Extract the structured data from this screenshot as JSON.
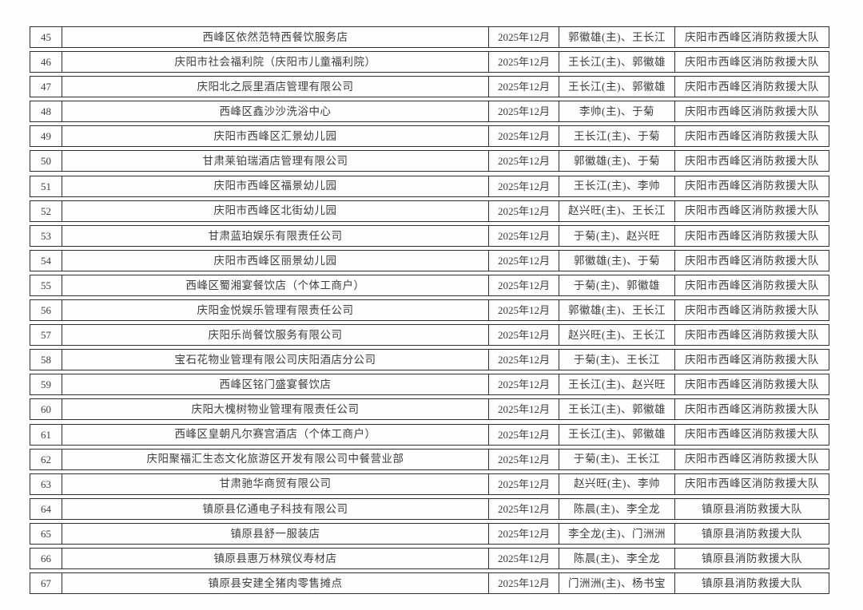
{
  "colors": {
    "border": "#2f2f2f",
    "text": "#3d3d3d",
    "page_background": "#fefefe"
  },
  "table": {
    "rows": [
      {
        "seq": "45",
        "name": "西峰区依然范特西餐饮服务店",
        "date": "2025年12月",
        "inspectors": "郭徽雄(主)、王长江",
        "brigade": "庆阳市西峰区消防救援大队"
      },
      {
        "seq": "46",
        "name": "庆阳市社会福利院（庆阳市儿童福利院）",
        "date": "2025年12月",
        "inspectors": "王长江(主)、郭徽雄",
        "brigade": "庆阳市西峰区消防救援大队"
      },
      {
        "seq": "47",
        "name": "庆阳北之辰里酒店管理有限公司",
        "date": "2025年12月",
        "inspectors": "王长江(主)、郭徽雄",
        "brigade": "庆阳市西峰区消防救援大队"
      },
      {
        "seq": "48",
        "name": "西峰区鑫沙沙洗浴中心",
        "date": "2025年12月",
        "inspectors": "李帅(主)、于菊",
        "brigade": "庆阳市西峰区消防救援大队"
      },
      {
        "seq": "49",
        "name": "庆阳市西峰区汇景幼儿园",
        "date": "2025年12月",
        "inspectors": "王长江(主)、于菊",
        "brigade": "庆阳市西峰区消防救援大队"
      },
      {
        "seq": "50",
        "name": "甘肃莱铂瑞酒店管理有限公司",
        "date": "2025年12月",
        "inspectors": "郭徽雄(主)、于菊",
        "brigade": "庆阳市西峰区消防救援大队"
      },
      {
        "seq": "51",
        "name": "庆阳市西峰区福景幼儿园",
        "date": "2025年12月",
        "inspectors": "王长江(主)、李帅",
        "brigade": "庆阳市西峰区消防救援大队"
      },
      {
        "seq": "52",
        "name": "庆阳市西峰区北街幼儿园",
        "date": "2025年12月",
        "inspectors": "赵兴旺(主)、王长江",
        "brigade": "庆阳市西峰区消防救援大队"
      },
      {
        "seq": "53",
        "name": "甘肃蓝珀娱乐有限责任公司",
        "date": "2025年12月",
        "inspectors": "于菊(主)、赵兴旺",
        "brigade": "庆阳市西峰区消防救援大队"
      },
      {
        "seq": "54",
        "name": "庆阳市西峰区丽景幼儿园",
        "date": "2025年12月",
        "inspectors": "郭徽雄(主)、于菊",
        "brigade": "庆阳市西峰区消防救援大队"
      },
      {
        "seq": "55",
        "name": "西峰区蜀湘宴餐饮店（个体工商户）",
        "date": "2025年12月",
        "inspectors": "于菊(主)、郭徽雄",
        "brigade": "庆阳市西峰区消防救援大队"
      },
      {
        "seq": "56",
        "name": "庆阳金悦娱乐管理有限责任公司",
        "date": "2025年12月",
        "inspectors": "郭徽雄(主)、王长江",
        "brigade": "庆阳市西峰区消防救援大队"
      },
      {
        "seq": "57",
        "name": "庆阳乐尚餐饮服务有限公司",
        "date": "2025年12月",
        "inspectors": "赵兴旺(主)、王长江",
        "brigade": "庆阳市西峰区消防救援大队"
      },
      {
        "seq": "58",
        "name": "宝石花物业管理有限公司庆阳酒店分公司",
        "date": "2025年12月",
        "inspectors": "于菊(主)、王长江",
        "brigade": "庆阳市西峰区消防救援大队"
      },
      {
        "seq": "59",
        "name": "西峰区铭门盛宴餐饮店",
        "date": "2025年12月",
        "inspectors": "王长江(主)、赵兴旺",
        "brigade": "庆阳市西峰区消防救援大队"
      },
      {
        "seq": "60",
        "name": "庆阳大槐树物业管理有限责任公司",
        "date": "2025年12月",
        "inspectors": "王长江(主)、郭徽雄",
        "brigade": "庆阳市西峰区消防救援大队"
      },
      {
        "seq": "61",
        "name": "西峰区皇朝凡尔赛宫酒店（个体工商户）",
        "date": "2025年12月",
        "inspectors": "王长江(主)、郭徽雄",
        "brigade": "庆阳市西峰区消防救援大队"
      },
      {
        "seq": "62",
        "name": "庆阳聚福汇生态文化旅游区开发有限公司中餐营业部",
        "date": "2025年12月",
        "inspectors": "于菊(主)、王长江",
        "brigade": "庆阳市西峰区消防救援大队"
      },
      {
        "seq": "63",
        "name": "甘肃驰华商贸有限公司",
        "date": "2025年12月",
        "inspectors": "赵兴旺(主)、李帅",
        "brigade": "庆阳市西峰区消防救援大队"
      },
      {
        "seq": "64",
        "name": "镇原县亿通电子科技有限公司",
        "date": "2025年12月",
        "inspectors": "陈晨(主)、李全龙",
        "brigade": "镇原县消防救援大队"
      },
      {
        "seq": "65",
        "name": "镇原县舒一服装店",
        "date": "2025年12月",
        "inspectors": "李全龙(主)、门洲洲",
        "brigade": "镇原县消防救援大队"
      },
      {
        "seq": "66",
        "name": "镇原县惠万林殡仪寿材店",
        "date": "2025年12月",
        "inspectors": "陈晨(主)、李全龙",
        "brigade": "镇原县消防救援大队"
      },
      {
        "seq": "67",
        "name": "镇原县安建全猪肉零售摊点",
        "date": "2025年12月",
        "inspectors": "门洲洲(主)、杨书宝",
        "brigade": "镇原县消防救援大队"
      }
    ]
  }
}
